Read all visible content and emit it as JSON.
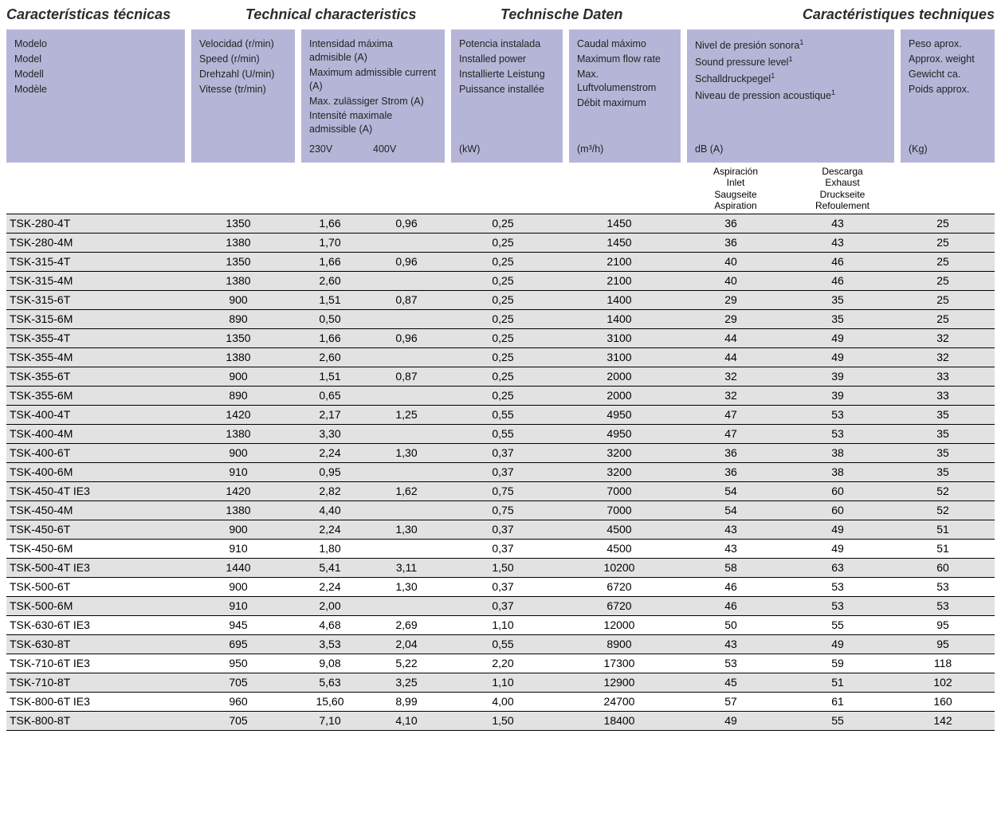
{
  "titles": {
    "es": "Características técnicas",
    "en": "Technical characteristics",
    "de": "Technische Daten",
    "fr": "Caractéristiques techniques"
  },
  "headers": {
    "model": {
      "es": "Modelo",
      "en": "Model",
      "de": "Modell",
      "fr": "Modèle"
    },
    "speed": {
      "es": "Velocidad (r/min)",
      "en": "Speed (r/min)",
      "de": "Drehzahl (U/min)",
      "fr": "Vitesse (tr/min)"
    },
    "current": {
      "es": "Intensidad máxima admisible (A)",
      "en": "Maximum admissible current (A)",
      "de": "Max. zulässiger Strom (A)",
      "fr": "Intensité maximale admissible (A)",
      "u230": "230V",
      "u400": "400V"
    },
    "power": {
      "es": "Potencia instalada",
      "en": "Installed power",
      "de": "Installierte Leistung",
      "fr": "Puissance installée",
      "unit": "(kW)"
    },
    "flow": {
      "es": "Caudal máximo",
      "en": "Maximum flow rate",
      "de": "Max. Luftvolumenstrom",
      "fr": "Débit maximum",
      "unit": "(m³/h)"
    },
    "sound": {
      "es": "Nivel de presión sonora",
      "en": "Sound pressure level",
      "de": "Schalldruckpegel",
      "fr": "Niveau de pression acoustique",
      "unit": "dB (A)",
      "sup": "1"
    },
    "weight": {
      "es": "Peso aprox.",
      "en": "Approx. weight",
      "de": "Gewicht ca.",
      "fr": "Poids approx.",
      "unit": "(Kg)"
    }
  },
  "sub": {
    "inlet": {
      "es": "Aspiración",
      "en": "Inlet",
      "de": "Saugseite",
      "fr": "Aspiration"
    },
    "outlet": {
      "es": "Descarga",
      "en": "Exhaust",
      "de": "Druckseite",
      "fr": "Refoulement"
    }
  },
  "rows": [
    {
      "model": "TSK-280-4T",
      "speed": "1350",
      "a230": "1,66",
      "a400": "0,96",
      "kw": "0,25",
      "flow": "1450",
      "in": "36",
      "out": "43",
      "wt": "25",
      "shade": true
    },
    {
      "model": "TSK-280-4M",
      "speed": "1380",
      "a230": "1,70",
      "a400": "",
      "kw": "0,25",
      "flow": "1450",
      "in": "36",
      "out": "43",
      "wt": "25",
      "shade": true
    },
    {
      "model": "TSK-315-4T",
      "speed": "1350",
      "a230": "1,66",
      "a400": "0,96",
      "kw": "0,25",
      "flow": "2100",
      "in": "40",
      "out": "46",
      "wt": "25",
      "shade": true
    },
    {
      "model": "TSK-315-4M",
      "speed": "1380",
      "a230": "2,60",
      "a400": "",
      "kw": "0,25",
      "flow": "2100",
      "in": "40",
      "out": "46",
      "wt": "25",
      "shade": true
    },
    {
      "model": "TSK-315-6T",
      "speed": "900",
      "a230": "1,51",
      "a400": "0,87",
      "kw": "0,25",
      "flow": "1400",
      "in": "29",
      "out": "35",
      "wt": "25",
      "shade": true
    },
    {
      "model": "TSK-315-6M",
      "speed": "890",
      "a230": "0,50",
      "a400": "",
      "kw": "0,25",
      "flow": "1400",
      "in": "29",
      "out": "35",
      "wt": "25",
      "shade": true
    },
    {
      "model": "TSK-355-4T",
      "speed": "1350",
      "a230": "1,66",
      "a400": "0,96",
      "kw": "0,25",
      "flow": "3100",
      "in": "44",
      "out": "49",
      "wt": "32",
      "shade": true
    },
    {
      "model": "TSK-355-4M",
      "speed": "1380",
      "a230": "2,60",
      "a400": "",
      "kw": "0,25",
      "flow": "3100",
      "in": "44",
      "out": "49",
      "wt": "32",
      "shade": true
    },
    {
      "model": "TSK-355-6T",
      "speed": "900",
      "a230": "1,51",
      "a400": "0,87",
      "kw": "0,25",
      "flow": "2000",
      "in": "32",
      "out": "39",
      "wt": "33",
      "shade": true
    },
    {
      "model": "TSK-355-6M",
      "speed": "890",
      "a230": "0,65",
      "a400": "",
      "kw": "0,25",
      "flow": "2000",
      "in": "32",
      "out": "39",
      "wt": "33",
      "shade": true
    },
    {
      "model": "TSK-400-4T",
      "speed": "1420",
      "a230": "2,17",
      "a400": "1,25",
      "kw": "0,55",
      "flow": "4950",
      "in": "47",
      "out": "53",
      "wt": "35",
      "shade": true
    },
    {
      "model": "TSK-400-4M",
      "speed": "1380",
      "a230": "3,30",
      "a400": "",
      "kw": "0,55",
      "flow": "4950",
      "in": "47",
      "out": "53",
      "wt": "35",
      "shade": true
    },
    {
      "model": "TSK-400-6T",
      "speed": "900",
      "a230": "2,24",
      "a400": "1,30",
      "kw": "0,37",
      "flow": "3200",
      "in": "36",
      "out": "38",
      "wt": "35",
      "shade": true
    },
    {
      "model": "TSK-400-6M",
      "speed": "910",
      "a230": "0,95",
      "a400": "",
      "kw": "0,37",
      "flow": "3200",
      "in": "36",
      "out": "38",
      "wt": "35",
      "shade": true
    },
    {
      "model": "TSK-450-4T IE3",
      "speed": "1420",
      "a230": "2,82",
      "a400": "1,62",
      "kw": "0,75",
      "flow": "7000",
      "in": "54",
      "out": "60",
      "wt": "52",
      "shade": true
    },
    {
      "model": "TSK-450-4M",
      "speed": "1380",
      "a230": "4,40",
      "a400": "",
      "kw": "0,75",
      "flow": "7000",
      "in": "54",
      "out": "60",
      "wt": "52",
      "shade": true
    },
    {
      "model": "TSK-450-6T",
      "speed": "900",
      "a230": "2,24",
      "a400": "1,30",
      "kw": "0,37",
      "flow": "4500",
      "in": "43",
      "out": "49",
      "wt": "51",
      "shade": true
    },
    {
      "model": "TSK-450-6M",
      "speed": "910",
      "a230": "1,80",
      "a400": "",
      "kw": "0,37",
      "flow": "4500",
      "in": "43",
      "out": "49",
      "wt": "51",
      "shade": false
    },
    {
      "model": "TSK-500-4T IE3",
      "speed": "1440",
      "a230": "5,41",
      "a400": "3,11",
      "kw": "1,50",
      "flow": "10200",
      "in": "58",
      "out": "63",
      "wt": "60",
      "shade": true
    },
    {
      "model": "TSK-500-6T",
      "speed": "900",
      "a230": "2,24",
      "a400": "1,30",
      "kw": "0,37",
      "flow": "6720",
      "in": "46",
      "out": "53",
      "wt": "53",
      "shade": false
    },
    {
      "model": "TSK-500-6M",
      "speed": "910",
      "a230": "2,00",
      "a400": "",
      "kw": "0,37",
      "flow": "6720",
      "in": "46",
      "out": "53",
      "wt": "53",
      "shade": true
    },
    {
      "model": "TSK-630-6T IE3",
      "speed": "945",
      "a230": "4,68",
      "a400": "2,69",
      "kw": "1,10",
      "flow": "12000",
      "in": "50",
      "out": "55",
      "wt": "95",
      "shade": false
    },
    {
      "model": "TSK-630-8T",
      "speed": "695",
      "a230": "3,53",
      "a400": "2,04",
      "kw": "0,55",
      "flow": "8900",
      "in": "43",
      "out": "49",
      "wt": "95",
      "shade": true
    },
    {
      "model": "TSK-710-6T IE3",
      "speed": "950",
      "a230": "9,08",
      "a400": "5,22",
      "kw": "2,20",
      "flow": "17300",
      "in": "53",
      "out": "59",
      "wt": "118",
      "shade": false
    },
    {
      "model": "TSK-710-8T",
      "speed": "705",
      "a230": "5,63",
      "a400": "3,25",
      "kw": "1,10",
      "flow": "12900",
      "in": "45",
      "out": "51",
      "wt": "102",
      "shade": true
    },
    {
      "model": "TSK-800-6T IE3",
      "speed": "960",
      "a230": "15,60",
      "a400": "8,99",
      "kw": "4,00",
      "flow": "24700",
      "in": "57",
      "out": "61",
      "wt": "160",
      "shade": false
    },
    {
      "model": "TSK-800-8T",
      "speed": "705",
      "a230": "7,10",
      "a400": "4,10",
      "kw": "1,50",
      "flow": "18400",
      "in": "49",
      "out": "55",
      "wt": "142",
      "shade": true
    }
  ],
  "style": {
    "header_bg": "#b5b6d7",
    "row_shade_bg": "#e2e2e2",
    "row_border": "#000000",
    "title_color": "#2d2d2d",
    "font_family": "Arial, Helvetica, sans-serif",
    "title_fontsize_pt": 14,
    "body_fontsize_pt": 10
  }
}
